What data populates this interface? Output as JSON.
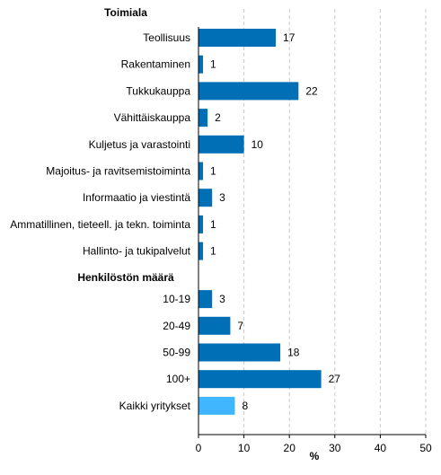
{
  "chart_data": {
    "type": "bar",
    "orientation": "horizontal",
    "xlabel": "%",
    "xlim": [
      0,
      50
    ],
    "xticks": [
      0,
      10,
      20,
      30,
      40,
      50
    ],
    "grid": true,
    "colors": {
      "default": "#006fb5",
      "highlight": "#3fb6ff"
    },
    "groups": [
      {
        "title": "Toimiala",
        "items": [
          {
            "label": "Teollisuus",
            "value": 17
          },
          {
            "label": "Rakentaminen",
            "value": 1
          },
          {
            "label": "Tukkukauppa",
            "value": 22
          },
          {
            "label": "Vähittäiskauppa",
            "value": 2
          },
          {
            "label": "Kuljetus ja varastointi",
            "value": 10
          },
          {
            "label": "Majoitus- ja ravitsemistoiminta",
            "value": 1
          },
          {
            "label": "Informaatio ja viestintä",
            "value": 3
          },
          {
            "label": "Ammatillinen, tieteell. ja tekn. toiminta",
            "value": 1
          },
          {
            "label": "Hallinto- ja tukipalvelut",
            "value": 1
          }
        ]
      },
      {
        "title": "Henkilöstön määrä",
        "items": [
          {
            "label": "10-19",
            "value": 3
          },
          {
            "label": "20-49",
            "value": 7
          },
          {
            "label": "50-99",
            "value": 18
          },
          {
            "label": "100+",
            "value": 27
          },
          {
            "label": "Kaikki yritykset",
            "value": 8,
            "highlight": true
          }
        ]
      }
    ]
  }
}
